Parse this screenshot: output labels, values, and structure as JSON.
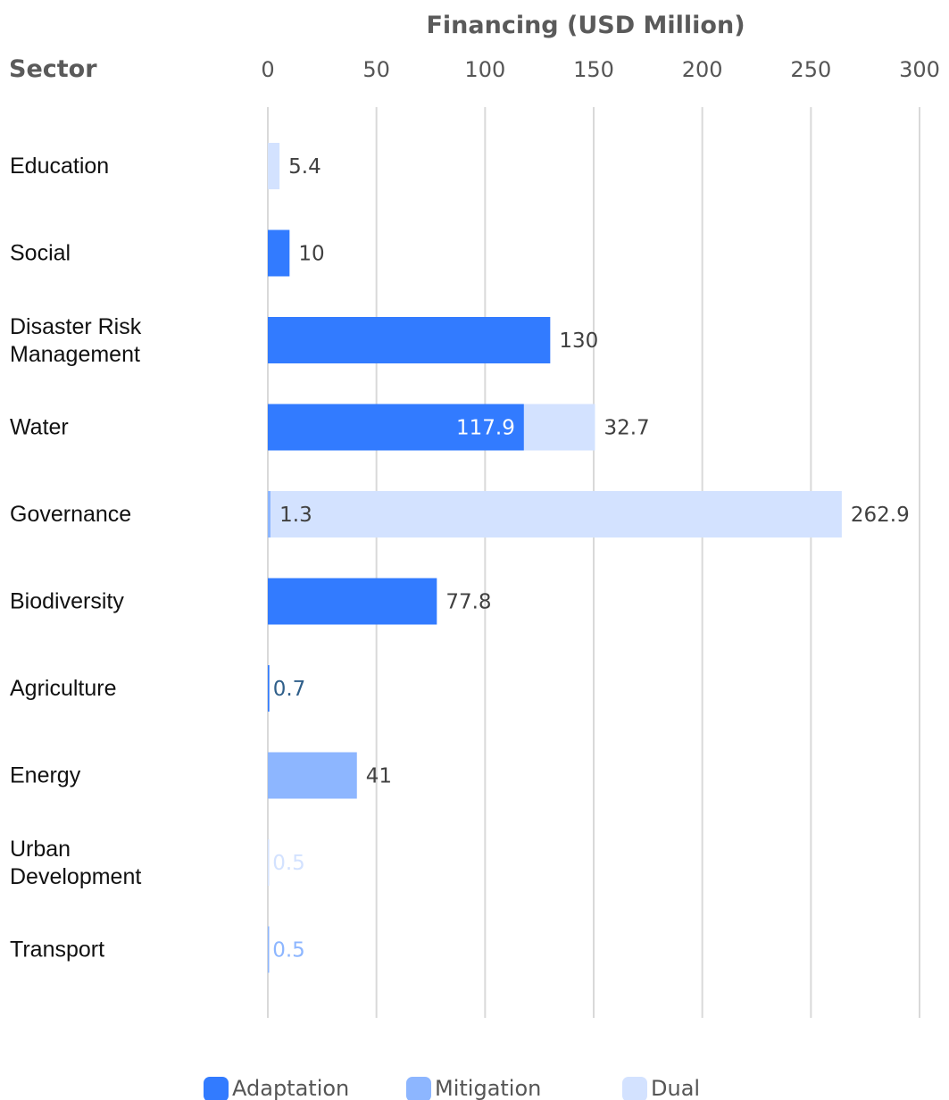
{
  "chart_data": {
    "type": "bar",
    "orientation": "horizontal",
    "stacked": true,
    "title": "",
    "xlabel": "Financing (USD Million)",
    "ylabel": "Sector",
    "xlim": [
      0,
      300
    ],
    "xticks": [
      0,
      50,
      100,
      150,
      200,
      250,
      300
    ],
    "grid": true,
    "legend_position": "bottom",
    "categories": [
      "Education",
      "Social",
      "Disaster Risk Management",
      "Water",
      "Governance",
      "Biodiversity",
      "Agriculture",
      "Energy",
      "Urban Development",
      "Transport"
    ],
    "series": [
      {
        "name": "Adaptation",
        "color": "#327bff",
        "values": [
          0,
          10,
          130,
          117.9,
          0,
          77.8,
          0.7,
          0,
          0,
          0
        ]
      },
      {
        "name": "Mitigation",
        "color": "#8db6ff",
        "values": [
          0,
          0,
          0,
          0,
          1.3,
          0,
          0,
          41,
          0,
          0.5
        ]
      },
      {
        "name": "Dual",
        "color": "#d3e2ff",
        "values": [
          5.4,
          0,
          0,
          32.7,
          262.9,
          0,
          0,
          0,
          0.5,
          0
        ]
      }
    ]
  }
}
